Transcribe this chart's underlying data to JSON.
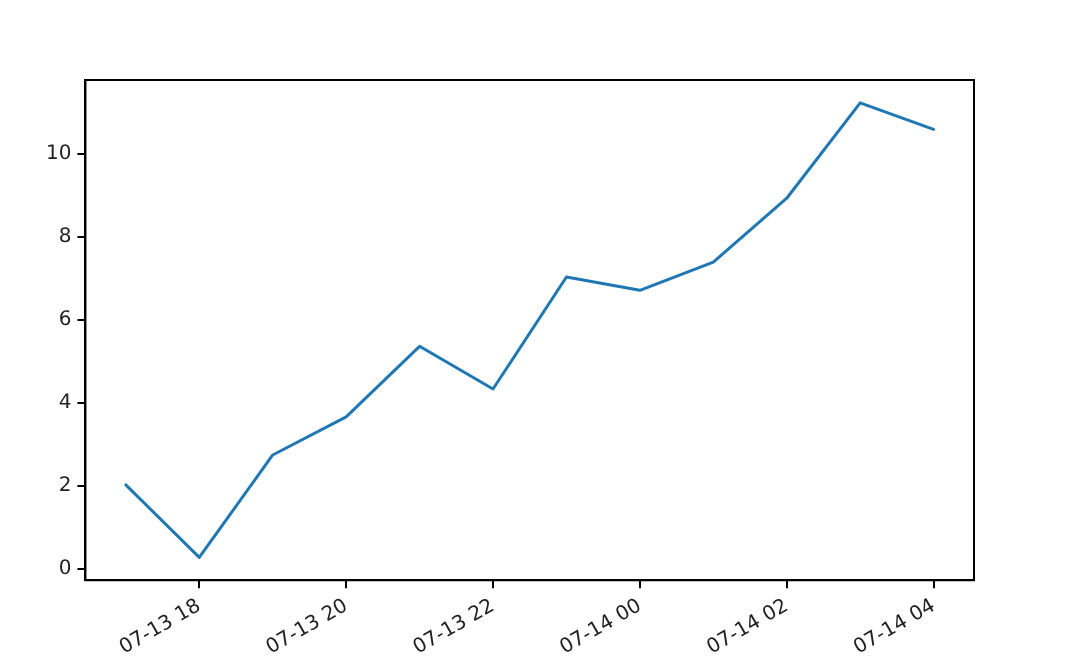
{
  "chart_data": {
    "type": "line",
    "x": [
      "--07-13T17:00",
      "--07-13T18:00",
      "--07-13T19:00",
      "--07-13T20:00",
      "--07-13T21:00",
      "--07-13T22:00",
      "--07-13T23:00",
      "--07-14T00:00",
      "--07-14T01:00",
      "--07-14T02:00",
      "--07-14T03:00",
      "--07-14T04:00"
    ],
    "series": [
      {
        "color": "#1f77b4",
        "values": [
          2.02,
          0.27,
          2.74,
          3.66,
          5.36,
          4.33,
          7.03,
          6.71,
          7.39,
          8.93,
          11.23,
          10.59
        ]
      }
    ],
    "xlim": [
      "--07-13T16:27",
      "--07-14T04:33"
    ],
    "xticks": [
      {
        "value": "--07-13T18:00",
        "label": "07-13 18"
      },
      {
        "value": "--07-13T20:00",
        "label": "07-13 20"
      },
      {
        "value": "--07-13T22:00",
        "label": "07-13 22"
      },
      {
        "value": "--07-14T00:00",
        "label": "07-14 00"
      },
      {
        "value": "--07-14T02:00",
        "label": "07-14 02"
      },
      {
        "value": "--07-14T04:00",
        "label": "07-14 04"
      }
    ],
    "ylim": [
      -0.28,
      11.78
    ],
    "yticks": [
      0,
      2,
      4,
      6,
      8,
      10
    ],
    "grid": false,
    "legend": false,
    "marker": "none",
    "line_style": "solid"
  }
}
